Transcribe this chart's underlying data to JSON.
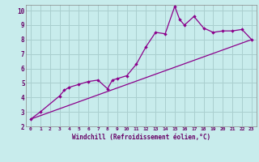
{
  "xlabel": "Windchill (Refroidissement éolien,°C)",
  "bg_color": "#c8ecec",
  "line_color": "#8b008b",
  "marker_color": "#8b008b",
  "grid_color": "#aacfcf",
  "axis_label_color": "#660066",
  "tick_color": "#660066",
  "xlim": [
    -0.5,
    23.5
  ],
  "ylim": [
    2,
    10.4
  ],
  "xticks": [
    0,
    1,
    2,
    3,
    4,
    5,
    6,
    7,
    8,
    9,
    10,
    11,
    12,
    13,
    14,
    15,
    16,
    17,
    18,
    19,
    20,
    21,
    22,
    23
  ],
  "yticks": [
    2,
    3,
    4,
    5,
    6,
    7,
    8,
    9,
    10
  ],
  "scatter_x": [
    0,
    1,
    3,
    3.5,
    4,
    5,
    6,
    7,
    8,
    8.5,
    9,
    10,
    11,
    12,
    13,
    14,
    15,
    15.5,
    16,
    17,
    18,
    19,
    20,
    21,
    22,
    23
  ],
  "scatter_y": [
    2.5,
    3.0,
    4.1,
    4.5,
    4.7,
    4.9,
    5.1,
    5.2,
    4.6,
    5.2,
    5.3,
    5.5,
    6.3,
    7.5,
    8.5,
    8.4,
    10.3,
    9.4,
    9.0,
    9.6,
    8.8,
    8.5,
    8.6,
    8.6,
    8.7,
    8.0
  ],
  "trend_x": [
    0,
    23
  ],
  "trend_y": [
    2.5,
    8.0
  ]
}
